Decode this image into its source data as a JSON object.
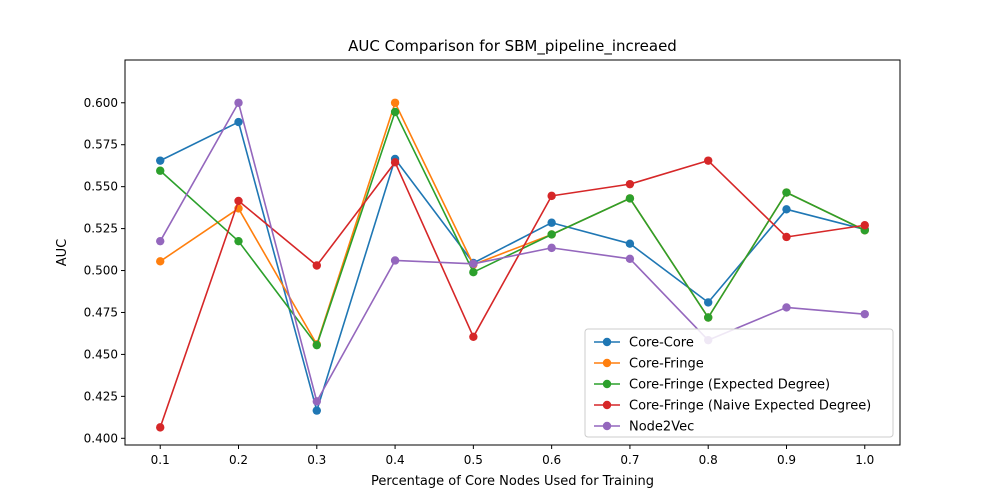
{
  "chart_data": {
    "type": "line",
    "title": "AUC Comparison for SBM_pipeline_increaed",
    "xlabel": "Percentage of Core Nodes Used for Training",
    "ylabel": "AUC",
    "x": [
      0.1,
      0.2,
      0.3,
      0.4,
      0.5,
      0.6,
      0.7,
      0.8,
      0.9,
      1.0
    ],
    "x_tick_labels": [
      "0.1",
      "0.2",
      "0.3",
      "0.4",
      "0.5",
      "0.6",
      "0.7",
      "0.8",
      "0.9",
      "1.0"
    ],
    "y_ticks": [
      0.4,
      0.425,
      0.45,
      0.475,
      0.5,
      0.525,
      0.55,
      0.575,
      0.6
    ],
    "y_tick_labels": [
      "0.400",
      "0.425",
      "0.450",
      "0.475",
      "0.500",
      "0.525",
      "0.550",
      "0.575",
      "0.600"
    ],
    "xlim": [
      0.055,
      1.045
    ],
    "ylim": [
      0.396,
      0.6255
    ],
    "grid": false,
    "legend_position": "lower-right",
    "series": [
      {
        "name": "Core-Core",
        "color": "#1f77b4",
        "values": [
          0.5655,
          0.5885,
          0.4165,
          0.5665,
          0.5045,
          0.5285,
          0.516,
          0.481,
          0.5365,
          0.5245
        ]
      },
      {
        "name": "Core-Fringe",
        "color": "#ff7f0e",
        "values": [
          0.5055,
          0.537,
          0.456,
          0.6,
          0.5035,
          0.5215,
          0.543,
          0.472,
          0.5465,
          0.524
        ]
      },
      {
        "name": "Core-Fringe (Expected Degree)",
        "color": "#2ca02c",
        "values": [
          0.5595,
          0.5175,
          0.4555,
          0.5945,
          0.499,
          0.5215,
          0.543,
          0.472,
          0.5465,
          0.524
        ]
      },
      {
        "name": "Core-Fringe (Naive Expected Degree)",
        "color": "#d62728",
        "values": [
          0.4065,
          0.5415,
          0.503,
          0.5645,
          0.4605,
          0.5445,
          0.5515,
          0.5655,
          0.52,
          0.527
        ]
      },
      {
        "name": "Node2Vec",
        "color": "#9467bd",
        "values": [
          0.5175,
          0.6,
          0.422,
          0.506,
          0.504,
          0.5135,
          0.507,
          0.4585,
          0.478,
          0.474
        ]
      }
    ]
  }
}
